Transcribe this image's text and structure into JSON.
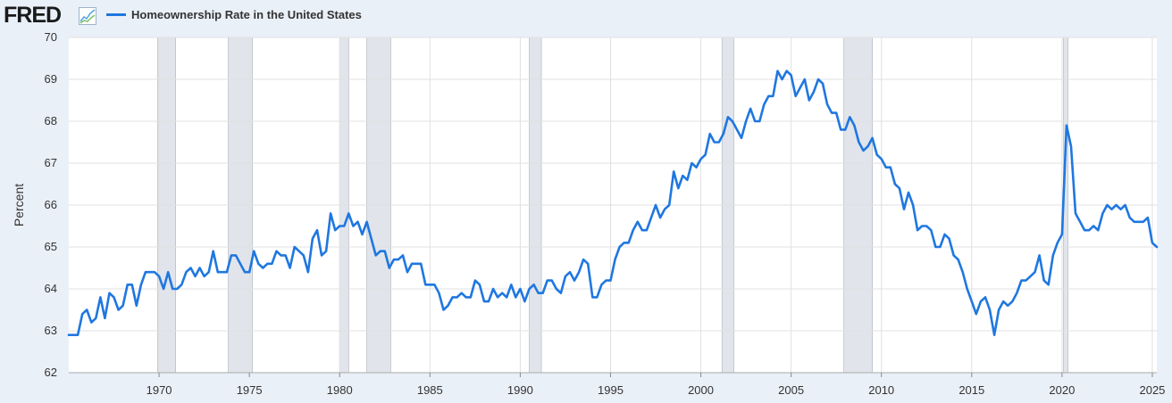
{
  "brand": {
    "logo_text": "FRED",
    "logo_icon": "line-chart-icon"
  },
  "colors": {
    "series": "#1f77e0",
    "recession": "#e1e5eb",
    "background": "#eaf0f8",
    "plot": "#ffffff",
    "grid": "#e0e0e0"
  },
  "chart_data": {
    "type": "line",
    "title": "",
    "xlabel": "",
    "ylabel": "Percent",
    "ylim": [
      62,
      70
    ],
    "xlim": [
      1965.0,
      2025.25
    ],
    "yticks": [
      62,
      63,
      64,
      65,
      66,
      67,
      68,
      69,
      70
    ],
    "xticks": [
      1970,
      1975,
      1980,
      1985,
      1990,
      1995,
      2000,
      2005,
      2010,
      2015,
      2020,
      2025
    ],
    "grid": true,
    "legend": "top-left",
    "recessions": [
      [
        1969.92,
        1970.92
      ],
      [
        1973.83,
        1975.17
      ],
      [
        1980.0,
        1980.5
      ],
      [
        1981.5,
        1982.83
      ],
      [
        1990.5,
        1991.17
      ],
      [
        2001.17,
        2001.83
      ],
      [
        2007.92,
        2009.5
      ],
      [
        2020.08,
        2020.33
      ]
    ],
    "series": [
      {
        "name": "Homeownership Rate in the United States",
        "x": [
          1965.0,
          1965.25,
          1965.5,
          1965.75,
          1966.0,
          1966.25,
          1966.5,
          1966.75,
          1967.0,
          1967.25,
          1967.5,
          1967.75,
          1968.0,
          1968.25,
          1968.5,
          1968.75,
          1969.0,
          1969.25,
          1969.5,
          1969.75,
          1970.0,
          1970.25,
          1970.5,
          1970.75,
          1971.0,
          1971.25,
          1971.5,
          1971.75,
          1972.0,
          1972.25,
          1972.5,
          1972.75,
          1973.0,
          1973.25,
          1973.5,
          1973.75,
          1974.0,
          1974.25,
          1974.5,
          1974.75,
          1975.0,
          1975.25,
          1975.5,
          1975.75,
          1976.0,
          1976.25,
          1976.5,
          1976.75,
          1977.0,
          1977.25,
          1977.5,
          1977.75,
          1978.0,
          1978.25,
          1978.5,
          1978.75,
          1979.0,
          1979.25,
          1979.5,
          1979.75,
          1980.0,
          1980.25,
          1980.5,
          1980.75,
          1981.0,
          1981.25,
          1981.5,
          1981.75,
          1982.0,
          1982.25,
          1982.5,
          1982.75,
          1983.0,
          1983.25,
          1983.5,
          1983.75,
          1984.0,
          1984.25,
          1984.5,
          1984.75,
          1985.0,
          1985.25,
          1985.5,
          1985.75,
          1986.0,
          1986.25,
          1986.5,
          1986.75,
          1987.0,
          1987.25,
          1987.5,
          1987.75,
          1988.0,
          1988.25,
          1988.5,
          1988.75,
          1989.0,
          1989.25,
          1989.5,
          1989.75,
          1990.0,
          1990.25,
          1990.5,
          1990.75,
          1991.0,
          1991.25,
          1991.5,
          1991.75,
          1992.0,
          1992.25,
          1992.5,
          1992.75,
          1993.0,
          1993.25,
          1993.5,
          1993.75,
          1994.0,
          1994.25,
          1994.5,
          1994.75,
          1995.0,
          1995.25,
          1995.5,
          1995.75,
          1996.0,
          1996.25,
          1996.5,
          1996.75,
          1997.0,
          1997.25,
          1997.5,
          1997.75,
          1998.0,
          1998.25,
          1998.5,
          1998.75,
          1999.0,
          1999.25,
          1999.5,
          1999.75,
          2000.0,
          2000.25,
          2000.5,
          2000.75,
          2001.0,
          2001.25,
          2001.5,
          2001.75,
          2002.0,
          2002.25,
          2002.5,
          2002.75,
          2003.0,
          2003.25,
          2003.5,
          2003.75,
          2004.0,
          2004.25,
          2004.5,
          2004.75,
          2005.0,
          2005.25,
          2005.5,
          2005.75,
          2006.0,
          2006.25,
          2006.5,
          2006.75,
          2007.0,
          2007.25,
          2007.5,
          2007.75,
          2008.0,
          2008.25,
          2008.5,
          2008.75,
          2009.0,
          2009.25,
          2009.5,
          2009.75,
          2010.0,
          2010.25,
          2010.5,
          2010.75,
          2011.0,
          2011.25,
          2011.5,
          2011.75,
          2012.0,
          2012.25,
          2012.5,
          2012.75,
          2013.0,
          2013.25,
          2013.5,
          2013.75,
          2014.0,
          2014.25,
          2014.5,
          2014.75,
          2015.0,
          2015.25,
          2015.5,
          2015.75,
          2016.0,
          2016.25,
          2016.5,
          2016.75,
          2017.0,
          2017.25,
          2017.5,
          2017.75,
          2018.0,
          2018.25,
          2018.5,
          2018.75,
          2019.0,
          2019.25,
          2019.5,
          2019.75,
          2020.0,
          2020.25,
          2020.5,
          2020.75,
          2021.0,
          2021.25,
          2021.5,
          2021.75,
          2022.0,
          2022.25,
          2022.5,
          2022.75,
          2023.0,
          2023.25,
          2023.5,
          2023.75,
          2024.0,
          2024.25,
          2024.5,
          2024.75,
          2025.0,
          2025.25
        ],
        "values": [
          62.9,
          62.9,
          62.9,
          63.4,
          63.5,
          63.2,
          63.3,
          63.8,
          63.3,
          63.9,
          63.8,
          63.5,
          63.6,
          64.1,
          64.1,
          63.6,
          64.1,
          64.4,
          64.4,
          64.4,
          64.3,
          64.0,
          64.4,
          64.0,
          64.0,
          64.1,
          64.4,
          64.5,
          64.3,
          64.5,
          64.3,
          64.4,
          64.9,
          64.4,
          64.4,
          64.4,
          64.8,
          64.8,
          64.6,
          64.4,
          64.4,
          64.9,
          64.6,
          64.5,
          64.6,
          64.6,
          64.9,
          64.8,
          64.8,
          64.5,
          65.0,
          64.9,
          64.8,
          64.4,
          65.2,
          65.4,
          64.8,
          64.9,
          65.8,
          65.4,
          65.5,
          65.5,
          65.8,
          65.5,
          65.6,
          65.3,
          65.6,
          65.2,
          64.8,
          64.9,
          64.9,
          64.5,
          64.7,
          64.7,
          64.8,
          64.4,
          64.6,
          64.6,
          64.6,
          64.1,
          64.1,
          64.1,
          63.9,
          63.5,
          63.6,
          63.8,
          63.8,
          63.9,
          63.8,
          63.8,
          64.2,
          64.1,
          63.7,
          63.7,
          64.0,
          63.8,
          63.9,
          63.8,
          64.1,
          63.8,
          64.0,
          63.7,
          64.0,
          64.1,
          63.9,
          63.9,
          64.2,
          64.2,
          64.0,
          63.9,
          64.3,
          64.4,
          64.2,
          64.4,
          64.7,
          64.6,
          63.8,
          63.8,
          64.1,
          64.2,
          64.2,
          64.7,
          65.0,
          65.1,
          65.1,
          65.4,
          65.6,
          65.4,
          65.4,
          65.7,
          66.0,
          65.7,
          65.9,
          66.0,
          66.8,
          66.4,
          66.7,
          66.6,
          67.0,
          66.9,
          67.1,
          67.2,
          67.7,
          67.5,
          67.5,
          67.7,
          68.1,
          68.0,
          67.8,
          67.6,
          68.0,
          68.3,
          68.0,
          68.0,
          68.4,
          68.6,
          68.6,
          69.2,
          69.0,
          69.2,
          69.1,
          68.6,
          68.8,
          69.0,
          68.5,
          68.7,
          69.0,
          68.9,
          68.4,
          68.2,
          68.2,
          67.8,
          67.8,
          68.1,
          67.9,
          67.5,
          67.3,
          67.4,
          67.6,
          67.2,
          67.1,
          66.9,
          66.9,
          66.5,
          66.4,
          65.9,
          66.3,
          66.0,
          65.4,
          65.5,
          65.5,
          65.4,
          65.0,
          65.0,
          65.3,
          65.2,
          64.8,
          64.7,
          64.4,
          64.0,
          63.7,
          63.4,
          63.7,
          63.8,
          63.5,
          62.9,
          63.5,
          63.7,
          63.6,
          63.7,
          63.9,
          64.2,
          64.2,
          64.3,
          64.4,
          64.8,
          64.2,
          64.1,
          64.8,
          65.1,
          65.3,
          67.9,
          67.4,
          65.8,
          65.6,
          65.4,
          65.4,
          65.5,
          65.4,
          65.8,
          66.0,
          65.9,
          66.0,
          65.9,
          66.0,
          65.7,
          65.6,
          65.6,
          65.6,
          65.7,
          65.1,
          65.0
        ]
      }
    ]
  }
}
